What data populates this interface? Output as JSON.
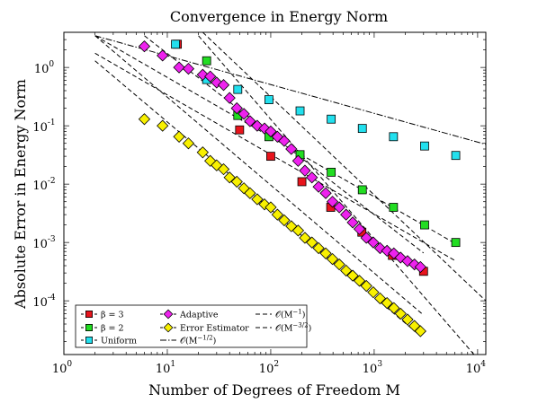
{
  "chart_data": {
    "type": "scatter",
    "title": "Convergence in Energy Norm",
    "xlabel": "Number of Degrees of Freedom M",
    "ylabel": "Absolute Error in Energy Norm",
    "xscale": "log",
    "yscale": "log",
    "xlim": [
      1,
      12000
    ],
    "ylim": [
      1.2e-05,
      4
    ],
    "xticks": [
      {
        "base": "10",
        "exp": "0",
        "value": 1
      },
      {
        "base": "10",
        "exp": "1",
        "value": 10
      },
      {
        "base": "10",
        "exp": "2",
        "value": 100
      },
      {
        "base": "10",
        "exp": "3",
        "value": 1000
      },
      {
        "base": "10",
        "exp": "4",
        "value": 10000
      }
    ],
    "yticks": [
      {
        "base": "10",
        "exp": "0",
        "value": 1
      },
      {
        "base": "10",
        "exp": "-1",
        "value": 0.1
      },
      {
        "base": "10",
        "exp": "-2",
        "value": 0.01
      },
      {
        "base": "10",
        "exp": "-3",
        "value": 0.001
      },
      {
        "base": "10",
        "exp": "-4",
        "value": 0.0001
      }
    ],
    "grid": false,
    "legend_position": "bottom-left",
    "series": [
      {
        "name": "β = 3",
        "marker": "square",
        "color": "#e8141c",
        "x": [
          12.5,
          50,
          100,
          200,
          380,
          760,
          1500,
          3000
        ],
        "y": [
          2.5,
          0.085,
          0.03,
          0.011,
          0.004,
          0.0015,
          0.0006,
          0.00032
        ]
      },
      {
        "name": "β = 2",
        "marker": "square",
        "color": "#22dd22",
        "x": [
          24,
          48,
          96,
          192,
          384,
          768,
          1536,
          3072,
          6144
        ],
        "y": [
          1.3,
          0.15,
          0.065,
          0.032,
          0.016,
          0.008,
          0.004,
          0.002,
          0.001
        ]
      },
      {
        "name": "Uniform",
        "marker": "square",
        "color": "#22e0ee",
        "x": [
          12,
          24,
          48,
          96,
          192,
          384,
          768,
          1536,
          3072,
          6144
        ],
        "y": [
          2.5,
          0.62,
          0.42,
          0.28,
          0.18,
          0.13,
          0.09,
          0.065,
          0.045,
          0.031
        ]
      },
      {
        "name": "Adaptive",
        "marker": "diamond",
        "color": "#ee22ee",
        "x": [
          6,
          9,
          13,
          16,
          22,
          26,
          30,
          35,
          40,
          47,
          55,
          63,
          74,
          87,
          100,
          116,
          135,
          158,
          184,
          214,
          250,
          290,
          340,
          395,
          460,
          535,
          620,
          720,
          840,
          980,
          1140,
          1330,
          1550,
          1800,
          2100,
          2450,
          2800
        ],
        "y": [
          2.3,
          1.6,
          1.0,
          0.95,
          0.75,
          0.7,
          0.55,
          0.5,
          0.3,
          0.2,
          0.16,
          0.12,
          0.1,
          0.09,
          0.08,
          0.065,
          0.055,
          0.04,
          0.025,
          0.017,
          0.013,
          0.009,
          0.007,
          0.005,
          0.004,
          0.003,
          0.0022,
          0.0017,
          0.0012,
          0.001,
          0.0008,
          0.00072,
          0.00065,
          0.00055,
          0.00048,
          0.00042,
          0.00038
        ]
      },
      {
        "name": "Error Estimator",
        "marker": "diamond",
        "color": "#f8f000",
        "x": [
          6,
          9,
          13,
          16,
          22,
          26,
          30,
          35,
          40,
          47,
          55,
          63,
          74,
          87,
          100,
          116,
          135,
          158,
          184,
          214,
          250,
          290,
          340,
          395,
          460,
          535,
          620,
          720,
          840,
          980,
          1140,
          1330,
          1550,
          1800,
          2100,
          2450,
          2800
        ],
        "y": [
          0.13,
          0.1,
          0.065,
          0.05,
          0.035,
          0.025,
          0.021,
          0.018,
          0.013,
          0.011,
          0.0085,
          0.007,
          0.0055,
          0.0045,
          0.004,
          0.003,
          0.0024,
          0.0019,
          0.0016,
          0.0012,
          0.001,
          0.0008,
          0.00065,
          0.00052,
          0.00042,
          0.00033,
          0.00027,
          0.00022,
          0.00018,
          0.00014,
          0.00011,
          9.17e-05,
          7.51e-05,
          6.01e-05,
          4.77e-05,
          3.71e-05,
          3.02e-05
        ]
      }
    ],
    "reference_lines": [
      {
        "name": "O(M^-1/2)",
        "label_text": "𝒪(M",
        "label_exp": "−1/2",
        "style": "dashdot",
        "x": [
          2,
          12000
        ],
        "y": [
          3.5,
          0.048
        ]
      },
      {
        "name": "O(M^-1)",
        "label_text": "𝒪(M",
        "label_exp": "−1",
        "style": "dashed",
        "lines": [
          {
            "x": [
              2,
              6144
            ],
            "y": [
              3.5,
              0.00095
            ]
          },
          {
            "x": [
              2,
              6144
            ],
            "y": [
              1.75,
              0.00048
            ]
          },
          {
            "x": [
              6,
              3000
            ],
            "y": [
              3.5,
              0.00066
            ]
          }
        ]
      },
      {
        "name": "O(M^-3/2)",
        "label_text": "𝒪(M",
        "label_exp": "−3/2",
        "style": "dashed",
        "lines": [
          {
            "x": [
              2,
              3000
            ],
            "y": [
              3.5,
              5.7e-05
            ]
          },
          {
            "x": [
              2,
              2800
            ],
            "y": [
              1.3,
              2.5e-05
            ]
          },
          {
            "x": [
              20,
              12000
            ],
            "y": [
              3.5,
              7e-06
            ]
          },
          {
            "x": [
              22,
              12000
            ],
            "y": [
              4.0,
              0.0001
            ]
          }
        ]
      }
    ]
  }
}
